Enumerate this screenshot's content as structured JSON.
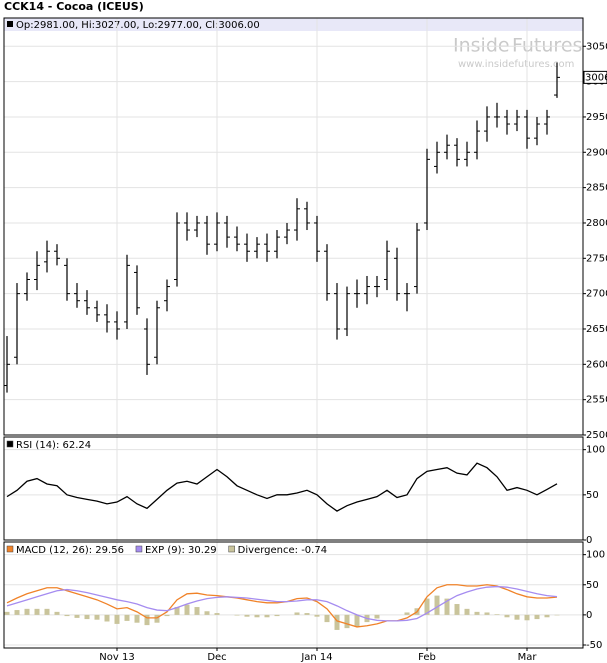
{
  "header": {
    "title": "CCK14 - Cocoa (ICEUS)",
    "quote": "Op:2981.00, Hi:3027.00, Lo:2977.00, Cl:3006.00"
  },
  "watermark": {
    "brand_left": "Inside",
    "brand_right": "Futures",
    "url": "www.insidefutures.com"
  },
  "chart_data": [
    {
      "type": "ohlc",
      "categories": [
        null,
        null,
        null,
        null,
        null,
        null,
        null,
        null,
        null,
        null,
        null,
        "Nov 13",
        null,
        null,
        null,
        null,
        null,
        null,
        null,
        null,
        null,
        "Dec",
        null,
        null,
        null,
        null,
        null,
        null,
        null,
        null,
        null,
        "Jan 14",
        null,
        null,
        null,
        null,
        null,
        null,
        null,
        null,
        null,
        null,
        "Feb",
        null,
        null,
        null,
        null,
        null,
        null,
        null,
        null,
        null,
        "Mar",
        null,
        null,
        null
      ],
      "open": [
        2570,
        2610,
        2700,
        2720,
        2745,
        2760,
        2740,
        2700,
        2690,
        2680,
        2670,
        2660,
        2660,
        2730,
        2650,
        2610,
        2690,
        2720,
        2800,
        2790,
        2800,
        2770,
        2800,
        2780,
        2770,
        2760,
        2770,
        2760,
        2780,
        2790,
        2820,
        2800,
        2760,
        2700,
        2650,
        2700,
        2700,
        2710,
        2720,
        2750,
        2700,
        2710,
        2800,
        2880,
        2900,
        2910,
        2890,
        2900,
        2930,
        2950,
        2950,
        2940,
        2950,
        2920,
        2940,
        2981
      ],
      "high": [
        2640,
        2715,
        2730,
        2760,
        2775,
        2770,
        2750,
        2715,
        2705,
        2690,
        2685,
        2675,
        2755,
        2740,
        2665,
        2690,
        2720,
        2815,
        2815,
        2810,
        2810,
        2815,
        2810,
        2795,
        2785,
        2780,
        2785,
        2790,
        2800,
        2835,
        2830,
        2810,
        2770,
        2715,
        2710,
        2720,
        2725,
        2725,
        2775,
        2765,
        2715,
        2800,
        2905,
        2915,
        2925,
        2920,
        2915,
        2945,
        2965,
        2970,
        2960,
        2960,
        2960,
        2950,
        2960,
        3027
      ],
      "low": [
        2560,
        2600,
        2690,
        2705,
        2730,
        2740,
        2690,
        2680,
        2670,
        2660,
        2645,
        2635,
        2650,
        2670,
        2585,
        2600,
        2675,
        2710,
        2775,
        2780,
        2755,
        2760,
        2765,
        2760,
        2745,
        2750,
        2745,
        2750,
        2770,
        2775,
        2790,
        2745,
        2690,
        2635,
        2640,
        2680,
        2685,
        2695,
        2705,
        2690,
        2675,
        2700,
        2790,
        2870,
        2890,
        2880,
        2880,
        2890,
        2915,
        2935,
        2925,
        2930,
        2905,
        2910,
        2925,
        2977
      ],
      "close": [
        2600,
        2700,
        2720,
        2740,
        2760,
        2750,
        2700,
        2690,
        2680,
        2670,
        2660,
        2650,
        2740,
        2680,
        2600,
        2680,
        2710,
        2800,
        2790,
        2800,
        2770,
        2800,
        2780,
        2770,
        2760,
        2770,
        2760,
        2780,
        2790,
        2820,
        2800,
        2760,
        2700,
        2650,
        2700,
        2700,
        2710,
        2710,
        2760,
        2700,
        2700,
        2790,
        2890,
        2900,
        2910,
        2890,
        2900,
        2930,
        2950,
        2950,
        2940,
        2950,
        2920,
        2940,
        2950,
        3006
      ],
      "color": "#000000",
      "ylim": [
        2500,
        3090
      ],
      "yticks": [
        2500,
        2550,
        2600,
        2650,
        2700,
        2750,
        2800,
        2850,
        2900,
        2950,
        3000,
        3050
      ],
      "grid": true
    },
    {
      "type": "line",
      "series": [
        {
          "name": "RSI (14): 62.24",
          "color": "#000000",
          "values": [
            48,
            55,
            65,
            68,
            62,
            60,
            50,
            47,
            45,
            43,
            40,
            42,
            48,
            40,
            35,
            45,
            55,
            63,
            65,
            62,
            70,
            78,
            70,
            60,
            55,
            50,
            46,
            50,
            50,
            52,
            55,
            50,
            40,
            32,
            38,
            42,
            45,
            48,
            55,
            47,
            50,
            68,
            76,
            78,
            80,
            74,
            72,
            85,
            80,
            70,
            55,
            58,
            55,
            50,
            56,
            62.24
          ]
        }
      ],
      "ylim": [
        0,
        114
      ],
      "yticks": [
        0,
        50,
        100
      ],
      "grid": true
    },
    {
      "type": "macd",
      "series": [
        {
          "name": "MACD (12, 26): 29.56",
          "color": "#f08228",
          "values": [
            20,
            28,
            35,
            40,
            45,
            45,
            40,
            35,
            30,
            25,
            18,
            10,
            12,
            5,
            -5,
            -5,
            5,
            25,
            35,
            36,
            33,
            32,
            30,
            28,
            25,
            22,
            20,
            20,
            22,
            27,
            28,
            22,
            10,
            -10,
            -15,
            -20,
            -18,
            -15,
            -10,
            -10,
            -5,
            5,
            30,
            45,
            50,
            50,
            48,
            48,
            50,
            48,
            42,
            35,
            30,
            28,
            28,
            29.56
          ]
        },
        {
          "name": "EXP (9): 30.29",
          "color": "#a58cf0",
          "values": [
            15,
            20,
            25,
            30,
            35,
            40,
            42,
            40,
            37,
            33,
            29,
            25,
            22,
            18,
            12,
            8,
            7,
            12,
            18,
            23,
            27,
            29,
            30,
            29,
            28,
            26,
            24,
            22,
            22,
            23,
            25,
            25,
            22,
            15,
            7,
            0,
            -6,
            -9,
            -10,
            -10,
            -9,
            -6,
            3,
            13,
            23,
            32,
            38,
            43,
            46,
            47,
            46,
            43,
            39,
            35,
            32,
            30.29
          ]
        },
        {
          "name": "Divergence: -0.74",
          "color": "#c9c49b",
          "kind": "bar",
          "values": [
            5,
            8,
            10,
            10,
            10,
            5,
            -2,
            -5,
            -7,
            -8,
            -11,
            -15,
            -10,
            -13,
            -17,
            -13,
            -2,
            13,
            17,
            13,
            6,
            3,
            0,
            -1,
            -3,
            -4,
            -4,
            -2,
            0,
            4,
            3,
            -3,
            -12,
            -25,
            -22,
            -20,
            -12,
            -6,
            0,
            0,
            4,
            11,
            27,
            32,
            27,
            18,
            10,
            5,
            4,
            1,
            -4,
            -8,
            -9,
            -7,
            -4,
            -0.74
          ]
        }
      ],
      "ylim": [
        -55,
        121
      ],
      "yticks": [
        -50,
        0,
        50,
        100
      ],
      "grid": true
    }
  ]
}
